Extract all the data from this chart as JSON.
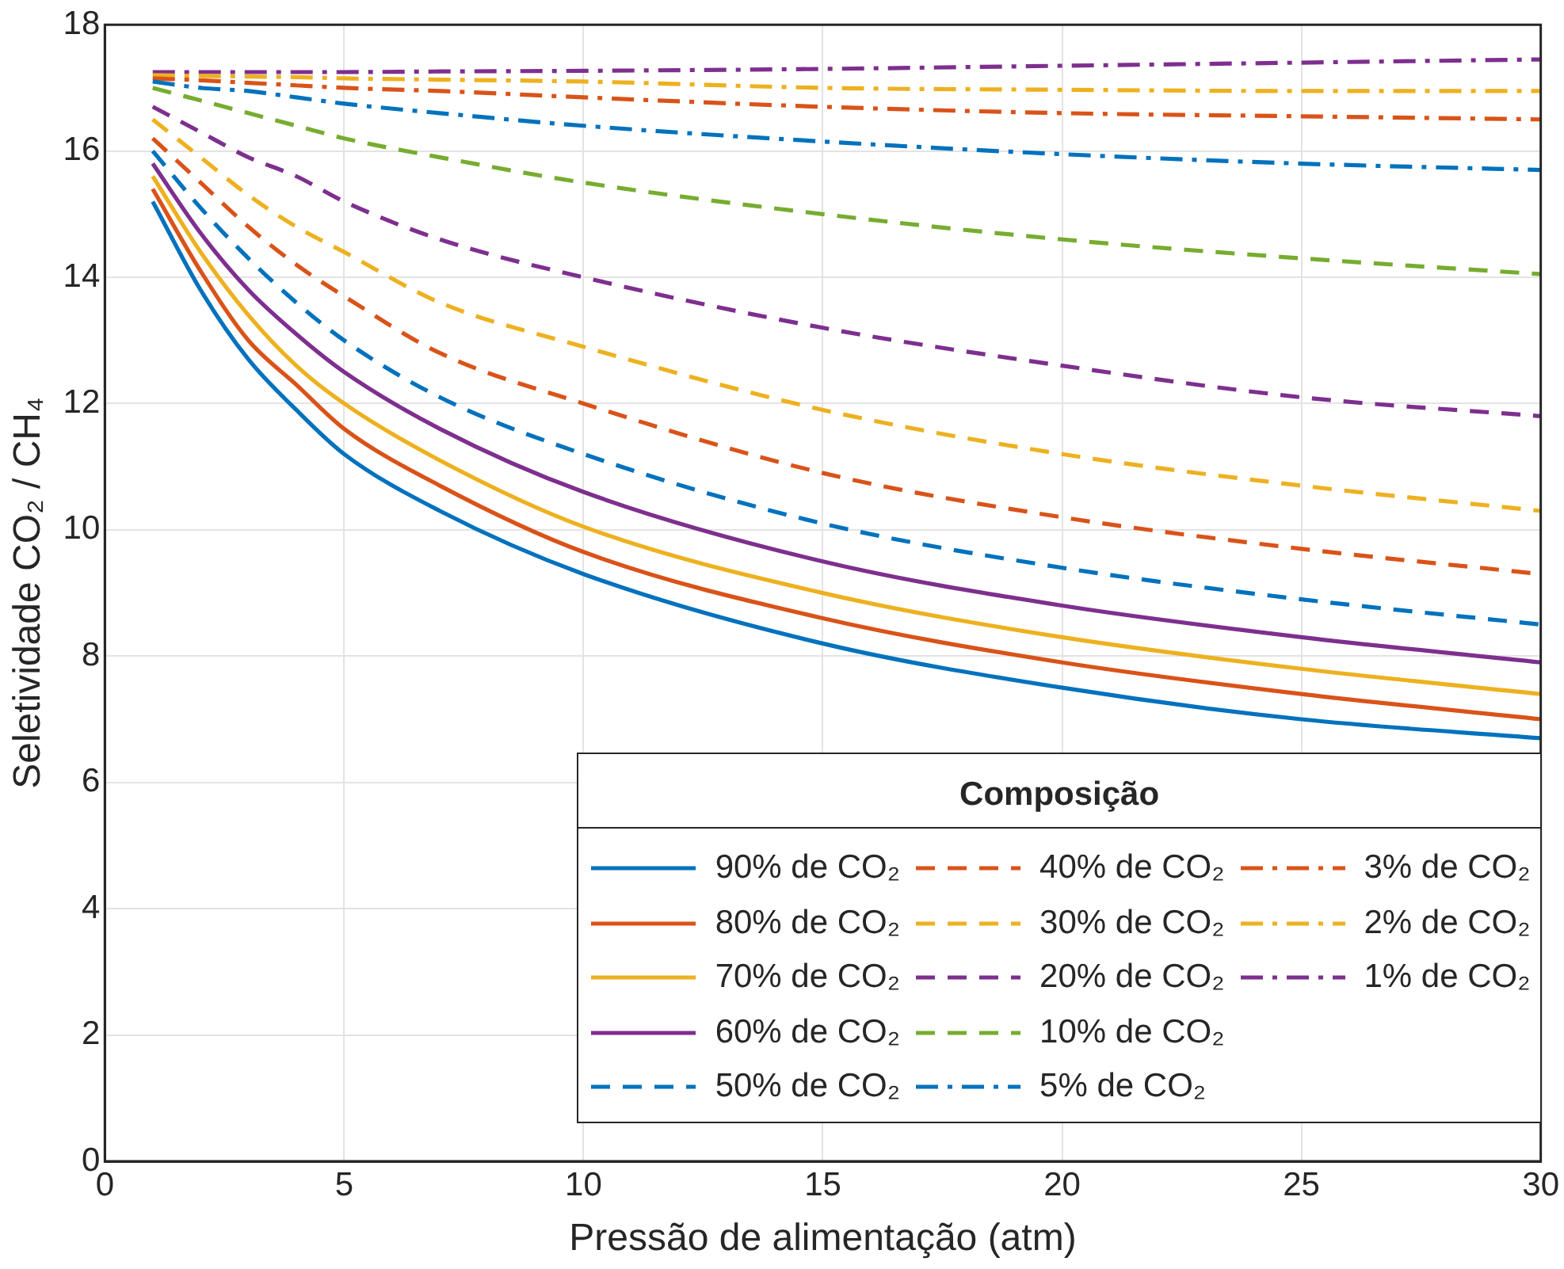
{
  "chart_data": {
    "type": "line",
    "xlabel": "Pressão de alimentação (atm)",
    "ylabel": "Seletividade CO₂ / CH₄",
    "legend_title": "Composição",
    "x": [
      1,
      2,
      3,
      4,
      5,
      7,
      10,
      15,
      20,
      25,
      30
    ],
    "xlim": [
      0,
      30
    ],
    "xticks": [
      0,
      5,
      10,
      15,
      20,
      25,
      30
    ],
    "ylim": [
      0,
      18
    ],
    "yticks": [
      0,
      2,
      4,
      6,
      8,
      10,
      12,
      14,
      16,
      18
    ],
    "grid": true,
    "legend": "bottom right",
    "marker": "none",
    "series": [
      {
        "name": "90% de CO₂",
        "color": "#0072bd",
        "line_style": "solid",
        "values": [
          15.2,
          13.8,
          12.7,
          11.9,
          11.2,
          10.3,
          9.3,
          8.2,
          7.5,
          7.0,
          6.7
        ]
      },
      {
        "name": "80% de CO₂",
        "color": "#d95319",
        "line_style": "solid",
        "values": [
          15.4,
          14.1,
          13.0,
          12.3,
          11.6,
          10.7,
          9.65,
          8.6,
          7.9,
          7.4,
          7.0
        ]
      },
      {
        "name": "70% de CO₂",
        "color": "#edb120",
        "line_style": "solid",
        "values": [
          15.6,
          14.4,
          13.4,
          12.6,
          12.0,
          11.1,
          10.05,
          9.0,
          8.3,
          7.8,
          7.4
        ]
      },
      {
        "name": "60% de CO₂",
        "color": "#7e2f8e",
        "line_style": "solid",
        "values": [
          15.8,
          14.7,
          13.8,
          13.1,
          12.5,
          11.6,
          10.6,
          9.5,
          8.8,
          8.3,
          7.9
        ]
      },
      {
        "name": "50% de CO₂",
        "color": "#0072bd",
        "line_style": "dashed",
        "values": [
          16.0,
          15.1,
          14.3,
          13.6,
          13.0,
          12.1,
          11.2,
          10.1,
          9.4,
          8.9,
          8.5
        ]
      },
      {
        "name": "40% de CO₂",
        "color": "#d95319",
        "line_style": "dashed",
        "values": [
          16.2,
          15.5,
          14.8,
          14.2,
          13.7,
          12.8,
          12.0,
          10.9,
          10.2,
          9.7,
          9.3
        ]
      },
      {
        "name": "30% de CO₂",
        "color": "#edb120",
        "line_style": "dashed",
        "values": [
          16.5,
          15.9,
          15.3,
          14.8,
          14.4,
          13.6,
          12.9,
          11.9,
          11.2,
          10.7,
          10.3
        ]
      },
      {
        "name": "20% de CO₂",
        "color": "#7e2f8e",
        "line_style": "dashed",
        "values": [
          16.7,
          16.3,
          15.9,
          15.6,
          15.2,
          14.6,
          14.0,
          13.2,
          12.6,
          12.1,
          11.8
        ]
      },
      {
        "name": "10% de CO₂",
        "color": "#77ac30",
        "line_style": "dashed",
        "values": [
          17.0,
          16.8,
          16.6,
          16.4,
          16.2,
          15.9,
          15.5,
          15.0,
          14.6,
          14.3,
          14.05
        ]
      },
      {
        "name": "5% de CO₂",
        "color": "#0072bd",
        "line_style": "dashdot",
        "values": [
          17.1,
          17.0,
          16.95,
          16.85,
          16.75,
          16.6,
          16.4,
          16.15,
          15.95,
          15.8,
          15.7
        ]
      },
      {
        "name": "3% de CO₂",
        "color": "#d95319",
        "line_style": "dashdot",
        "values": [
          17.15,
          17.12,
          17.08,
          17.04,
          17.0,
          16.95,
          16.85,
          16.7,
          16.6,
          16.55,
          16.5
        ]
      },
      {
        "name": "2% de CO₂",
        "color": "#edb120",
        "line_style": "dashdot",
        "values": [
          17.2,
          17.19,
          17.18,
          17.17,
          17.15,
          17.13,
          17.1,
          17.0,
          16.97,
          16.95,
          16.95
        ]
      },
      {
        "name": "1% de CO₂",
        "color": "#7e2f8e",
        "line_style": "dashdot",
        "values": [
          17.25,
          17.25,
          17.25,
          17.25,
          17.25,
          17.26,
          17.27,
          17.3,
          17.35,
          17.4,
          17.45
        ]
      }
    ]
  }
}
